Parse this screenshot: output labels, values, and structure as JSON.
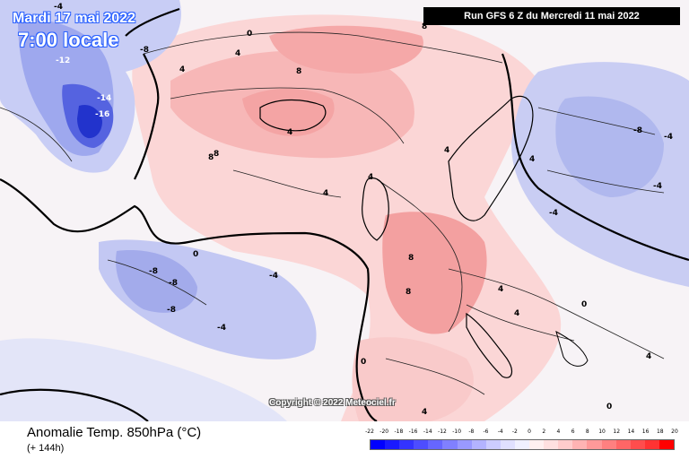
{
  "header": {
    "date": "Mardi 17 mai 2022",
    "time": "7:00 locale",
    "run": "Run GFS 6 Z du Mercredi 11 mai 2022"
  },
  "copyright": "Copyright © 2022 Meteociel.fr",
  "footer": {
    "title": "Anomalie Temp. 850hPa (°C)",
    "subtitle": "(+ 144h)"
  },
  "legend": {
    "ticks": [
      "-22",
      "-20",
      "-18",
      "-16",
      "-14",
      "-12",
      "-10",
      "-8",
      "-6",
      "-4",
      "-2",
      "0",
      "2",
      "4",
      "6",
      "8",
      "10",
      "12",
      "14",
      "16",
      "18",
      "20"
    ],
    "colors": [
      "#0000ff",
      "#1a1aff",
      "#3333ff",
      "#4d4dff",
      "#6666ff",
      "#8080ff",
      "#9999ff",
      "#b3b3ff",
      "#ccccff",
      "#e0e0ff",
      "#f0f0ff",
      "#fff0f0",
      "#ffe0e0",
      "#ffcccc",
      "#ffb3b3",
      "#ff9999",
      "#ff8080",
      "#ff6666",
      "#ff4d4d",
      "#ff3333",
      "#ff0000"
    ]
  },
  "map_labels": [
    {
      "text": "-4"
    },
    {
      "text": "-12"
    },
    {
      "text": "-14"
    },
    {
      "text": "-16"
    },
    {
      "text": "-8"
    },
    {
      "text": "0"
    },
    {
      "text": "4"
    },
    {
      "text": "8"
    },
    {
      "text": "8"
    },
    {
      "text": "4"
    },
    {
      "text": "8"
    },
    {
      "text": "4"
    },
    {
      "text": "4"
    },
    {
      "text": "4"
    },
    {
      "text": "0"
    },
    {
      "text": "-8"
    },
    {
      "text": "-8"
    },
    {
      "text": "-8"
    },
    {
      "text": "-4"
    },
    {
      "text": "-4"
    },
    {
      "text": "4"
    },
    {
      "text": "8"
    },
    {
      "text": "8"
    },
    {
      "text": "4"
    },
    {
      "text": "4"
    },
    {
      "text": "-4"
    },
    {
      "text": "-8"
    },
    {
      "text": "-4"
    },
    {
      "text": "0"
    },
    {
      "text": "0"
    },
    {
      "text": "4"
    },
    {
      "text": "0"
    },
    {
      "text": "4"
    },
    {
      "text": "-4"
    },
    {
      "text": "4"
    },
    {
      "text": "8"
    }
  ]
}
